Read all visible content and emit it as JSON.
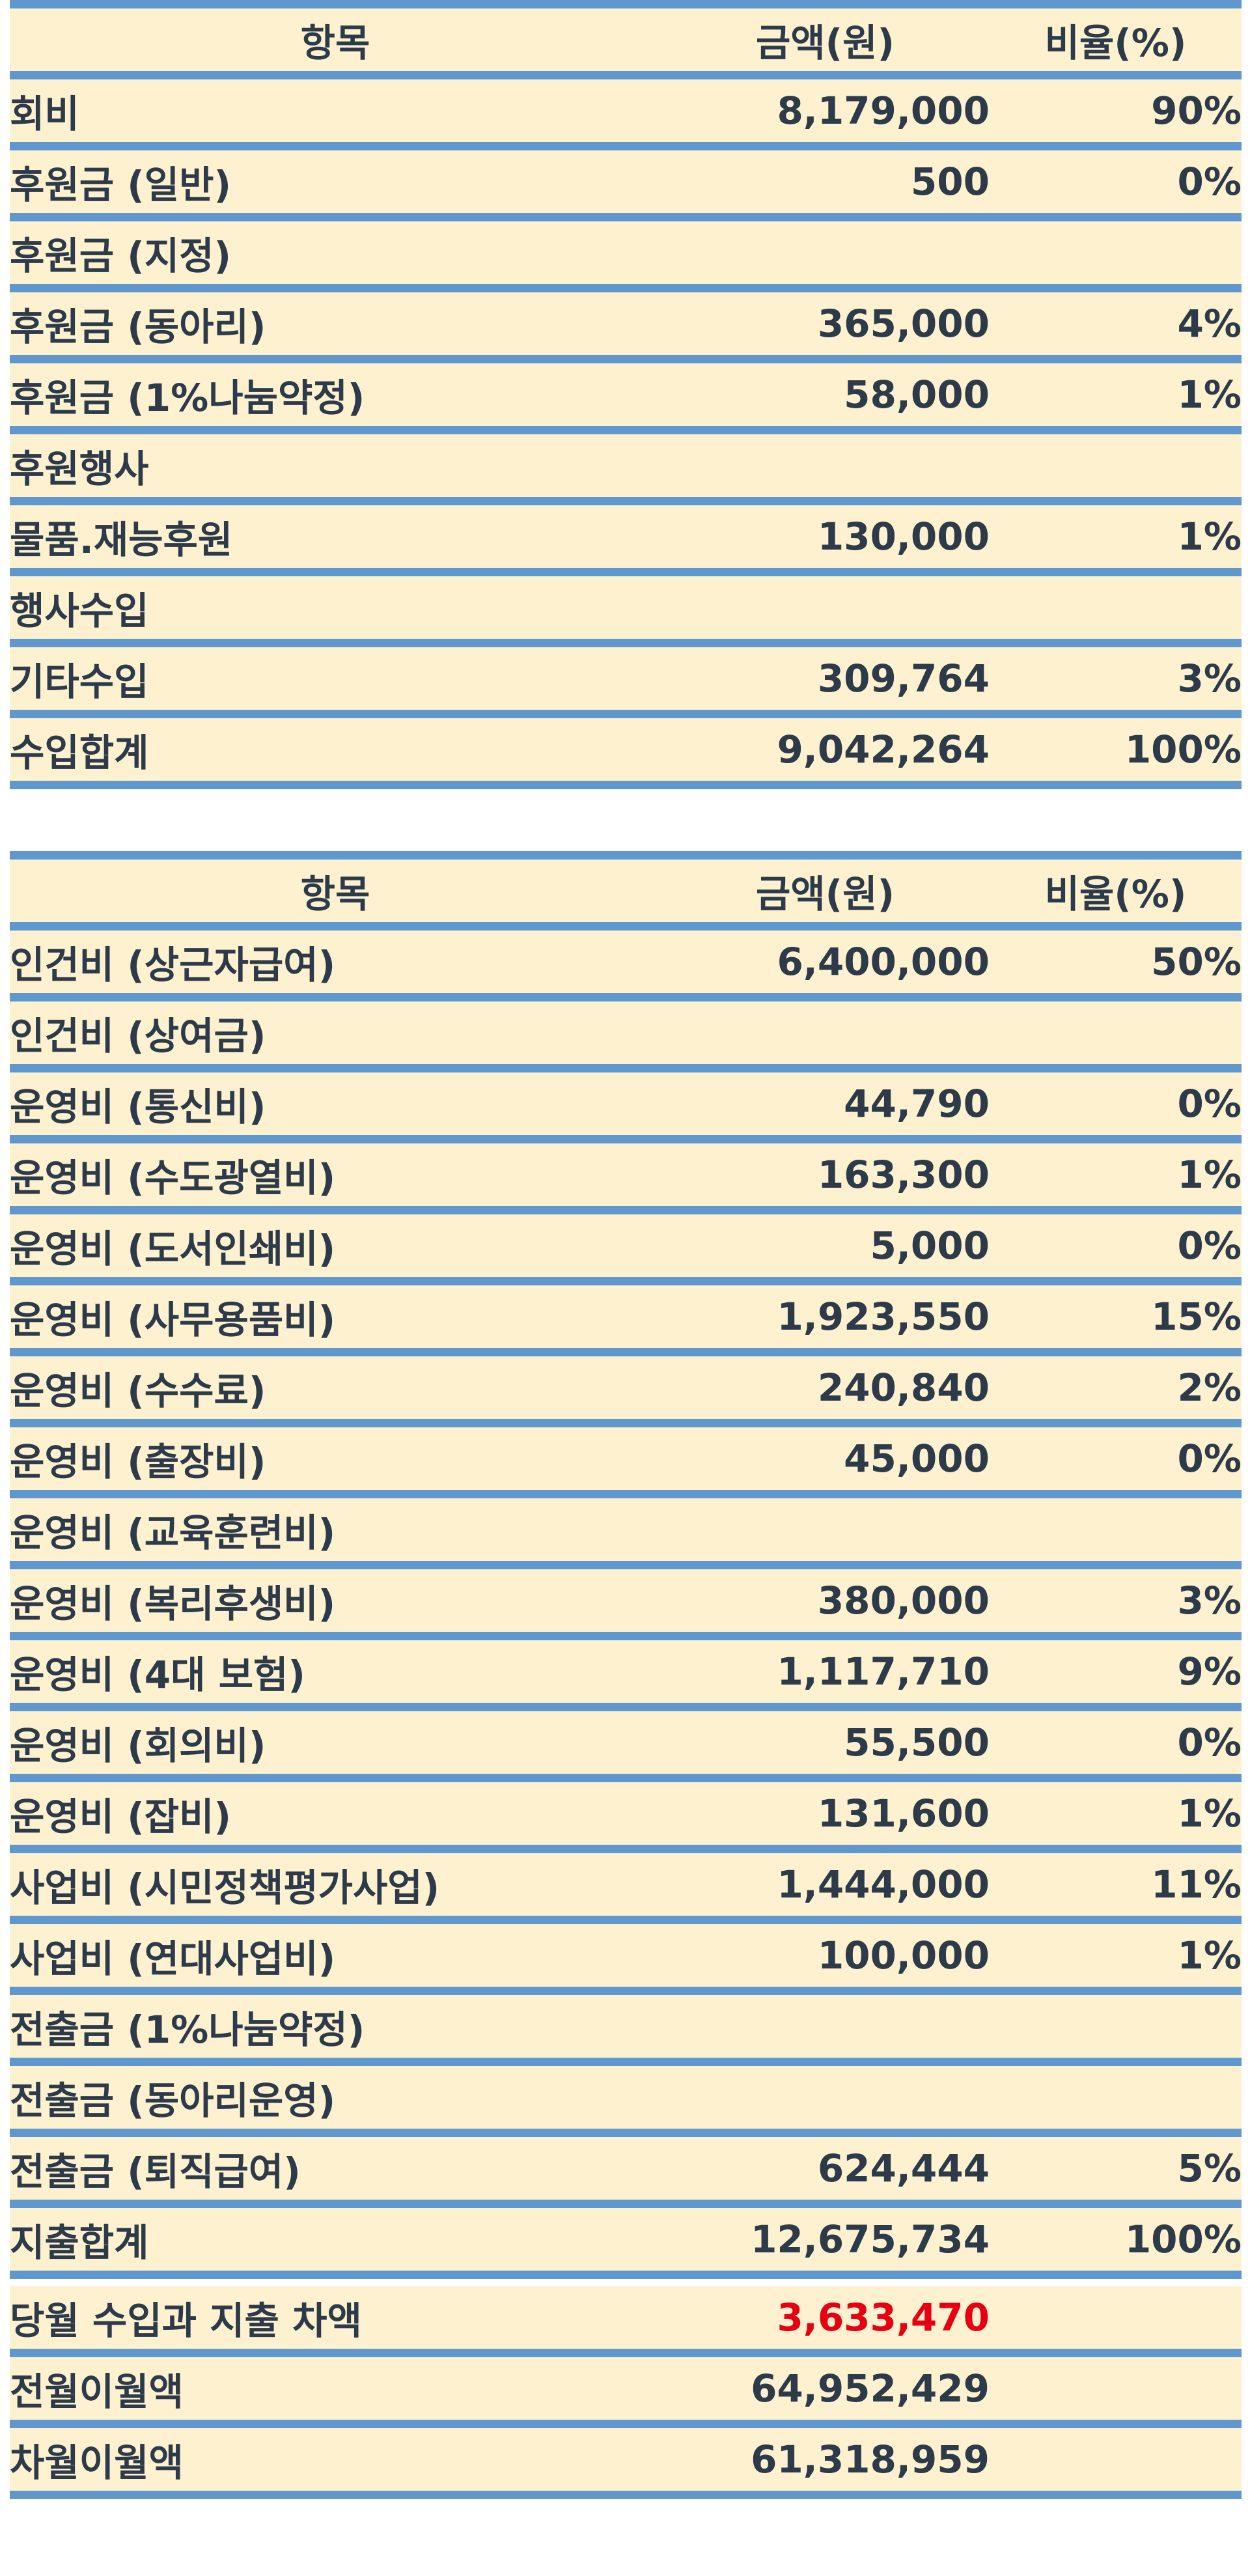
{
  "income": {
    "header": {
      "item": "항목",
      "amount": "금액(원)",
      "ratio": "비율(%)"
    },
    "rows": [
      {
        "item": "회비",
        "amount": "8,179,000",
        "ratio": "90%"
      },
      {
        "item": "후원금 (일반)",
        "amount": "500",
        "ratio": "0%"
      },
      {
        "item": "후원금 (지정)",
        "amount": "",
        "ratio": ""
      },
      {
        "item": "후원금 (동아리)",
        "amount": "365,000",
        "ratio": "4%"
      },
      {
        "item": "후원금 (1%나눔약정)",
        "amount": "58,000",
        "ratio": "1%"
      },
      {
        "item": "후원행사",
        "amount": "",
        "ratio": ""
      },
      {
        "item": "물품.재능후원",
        "amount": "130,000",
        "ratio": "1%"
      },
      {
        "item": "행사수입",
        "amount": "",
        "ratio": ""
      },
      {
        "item": "기타수입",
        "amount": "309,764",
        "ratio": "3%"
      },
      {
        "item": "수입합계",
        "amount": "9,042,264",
        "ratio": "100%"
      }
    ]
  },
  "expense": {
    "header": {
      "item": "항목",
      "amount": "금액(원)",
      "ratio": "비율(%)"
    },
    "rows": [
      {
        "item": "인건비 (상근자급여)",
        "amount": "6,400,000",
        "ratio": "50%"
      },
      {
        "item": "인건비 (상여금)",
        "amount": "",
        "ratio": ""
      },
      {
        "item": "운영비 (통신비)",
        "amount": "44,790",
        "ratio": "0%"
      },
      {
        "item": "운영비 (수도광열비)",
        "amount": "163,300",
        "ratio": "1%"
      },
      {
        "item": "운영비 (도서인쇄비)",
        "amount": "5,000",
        "ratio": "0%"
      },
      {
        "item": "운영비 (사무용품비)",
        "amount": "1,923,550",
        "ratio": "15%"
      },
      {
        "item": "운영비 (수수료)",
        "amount": "240,840",
        "ratio": "2%"
      },
      {
        "item": "운영비 (출장비)",
        "amount": "45,000",
        "ratio": "0%"
      },
      {
        "item": "운영비 (교육훈련비)",
        "amount": "",
        "ratio": ""
      },
      {
        "item": "운영비 (복리후생비)",
        "amount": "380,000",
        "ratio": "3%"
      },
      {
        "item": "운영비 (4대 보험)",
        "amount": "1,117,710",
        "ratio": "9%"
      },
      {
        "item": "운영비 (회의비)",
        "amount": "55,500",
        "ratio": "0%"
      },
      {
        "item": "운영비 (잡비)",
        "amount": "131,600",
        "ratio": "1%"
      },
      {
        "item": "사업비 (시민정책평가사업)",
        "amount": "1,444,000",
        "ratio": "11%"
      },
      {
        "item": "사업비 (연대사업비)",
        "amount": "100,000",
        "ratio": "1%"
      },
      {
        "item": "전출금 (1%나눔약정)",
        "amount": "",
        "ratio": ""
      },
      {
        "item": "전출금 (동아리운영)",
        "amount": "",
        "ratio": ""
      },
      {
        "item": "전출금 (퇴직급여)",
        "amount": "624,444",
        "ratio": "5%"
      },
      {
        "item": "지출합계",
        "amount": "12,675,734",
        "ratio": "100%"
      }
    ]
  },
  "summary": {
    "rows": [
      {
        "item": "당월 수입과 지출 차액",
        "amount": "3,633,470",
        "ratio": "",
        "negative": true
      },
      {
        "item": "전월이월액",
        "amount": "64,952,429",
        "ratio": ""
      },
      {
        "item": "차월이월액",
        "amount": "61,318,959",
        "ratio": ""
      }
    ]
  },
  "colors": {
    "row_background": "#fdf1cf",
    "row_border": "#5e98cf",
    "text": "#2c3a4a",
    "negative_amount": "#e60012"
  }
}
